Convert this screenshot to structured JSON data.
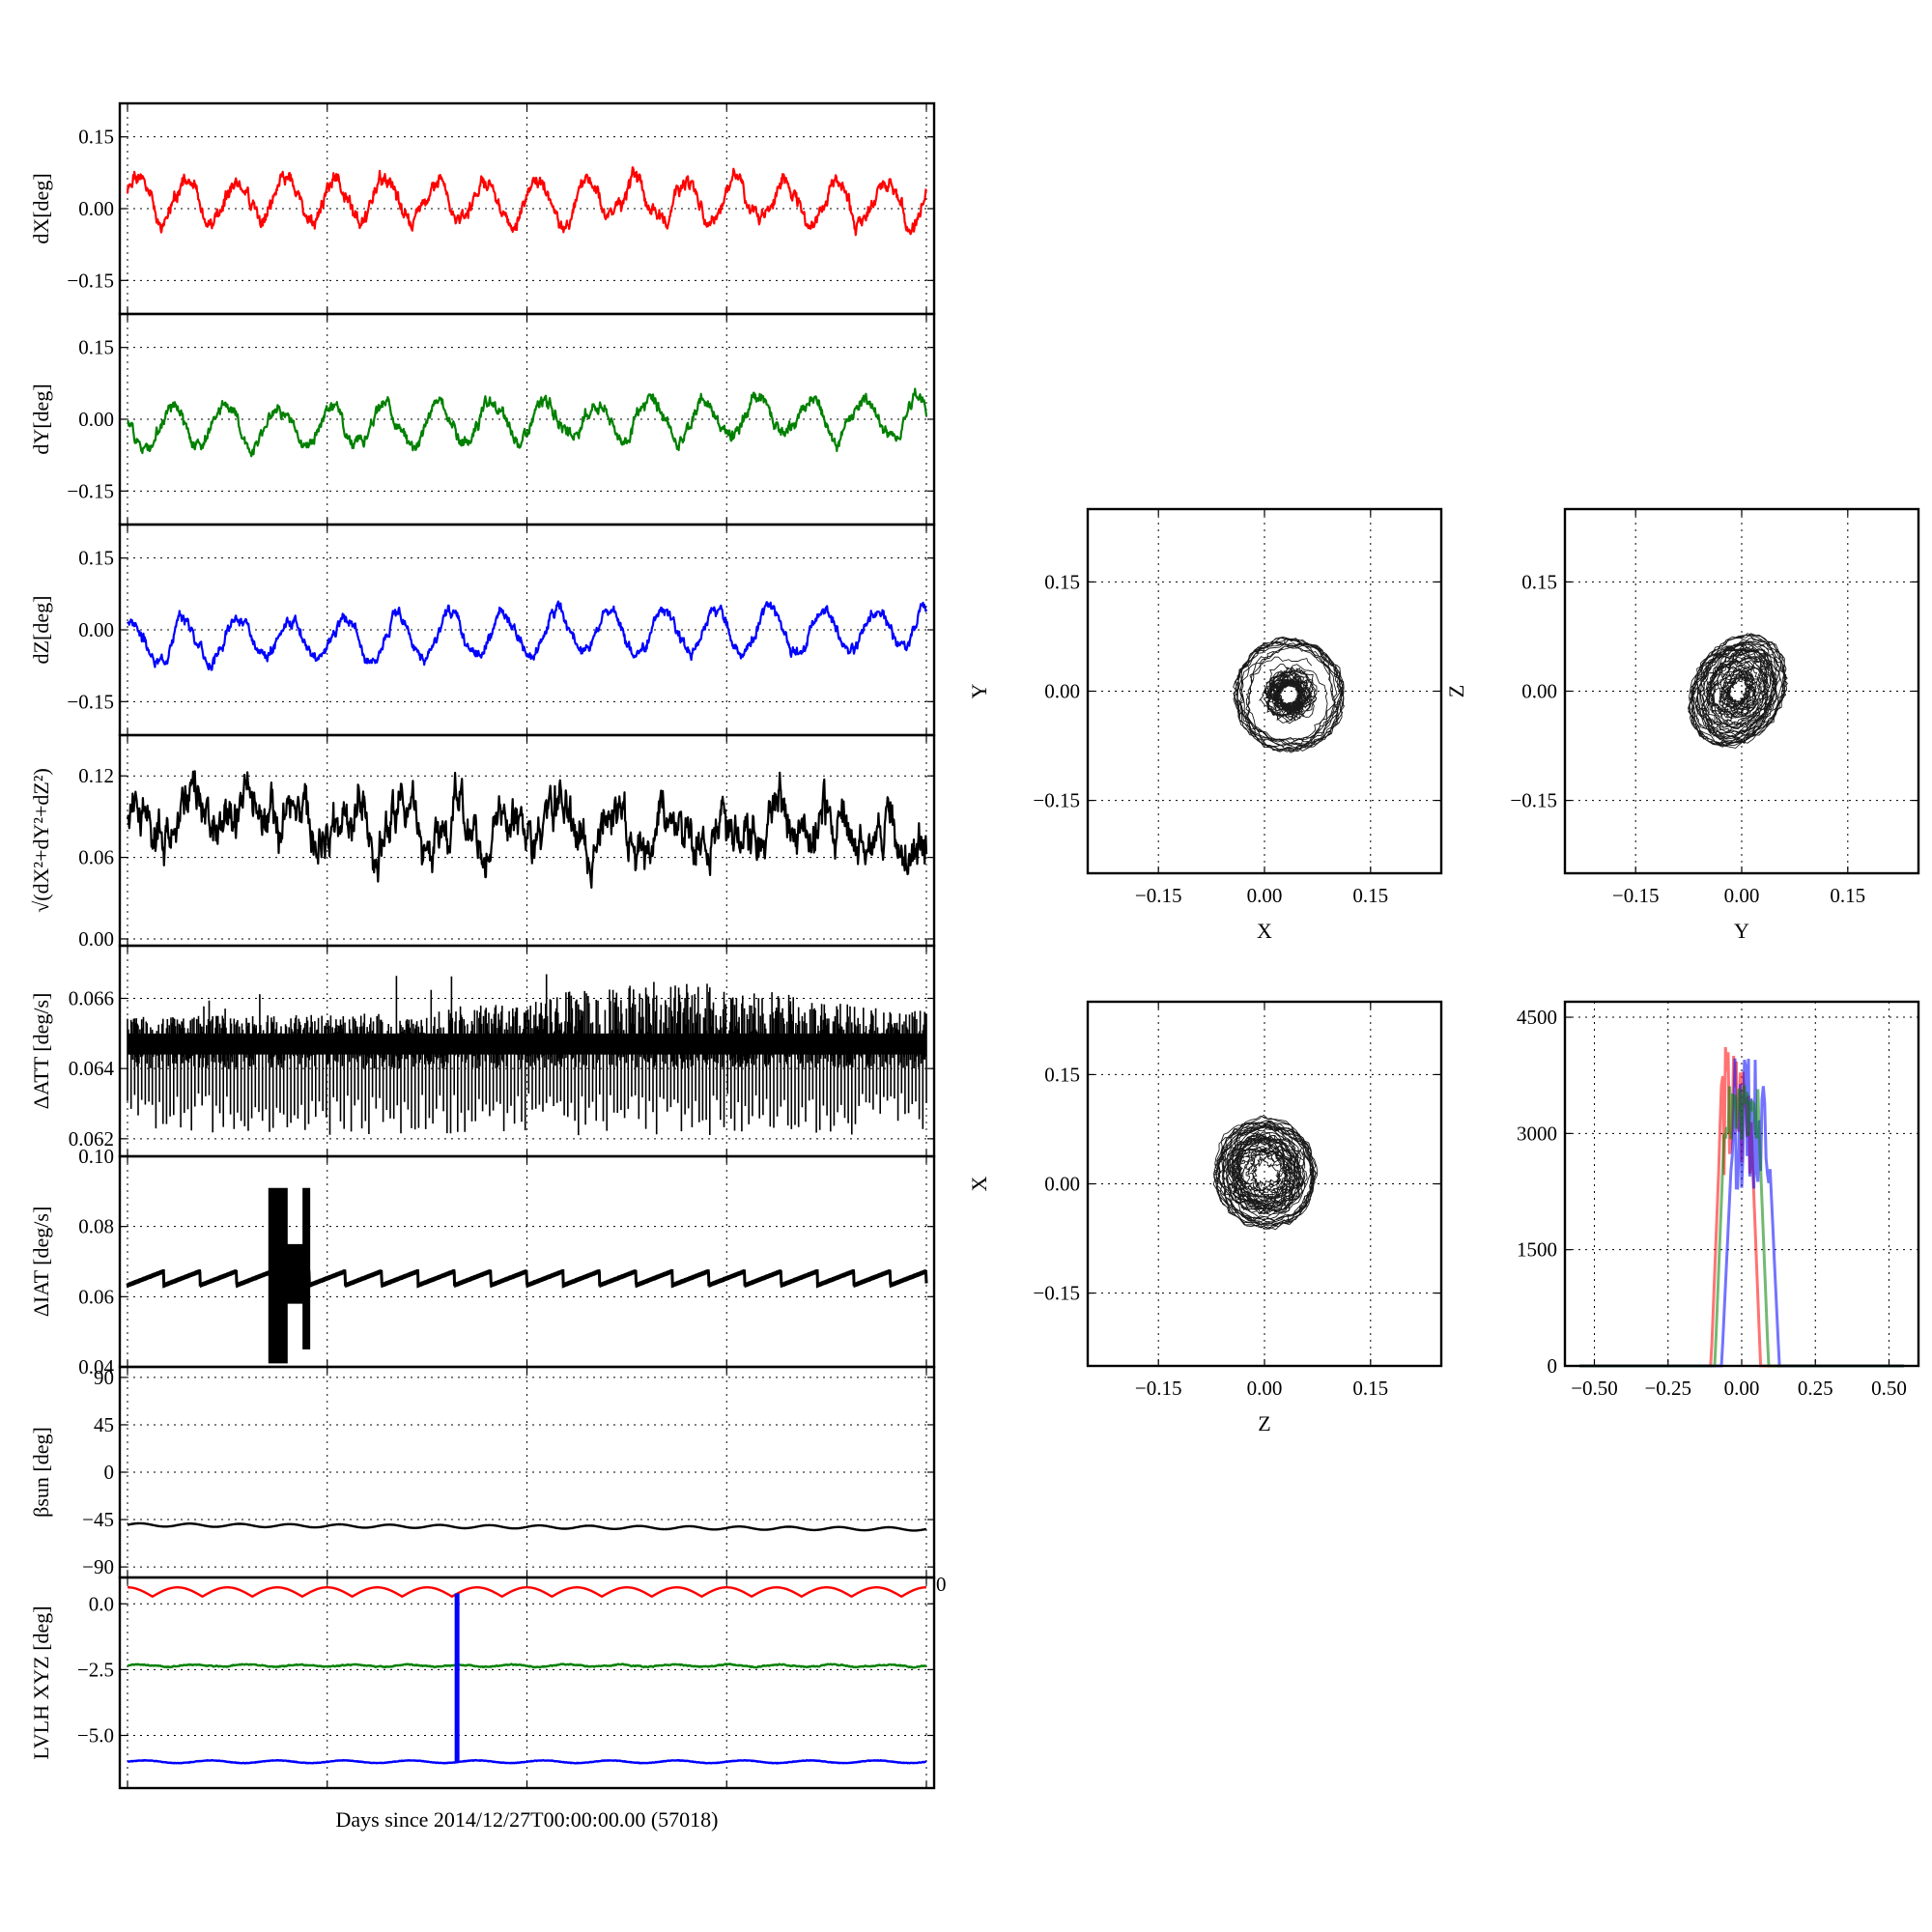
{
  "chart_data": [
    {
      "id": "dx",
      "type": "line",
      "ylabel": "dX[deg]",
      "ylim": [
        -0.22,
        0.22
      ],
      "yticks": [
        -0.15,
        0.0,
        0.15
      ],
      "ytick_labels": [
        "−0.15",
        "0.00",
        "0.15"
      ],
      "xlim": [
        0,
        4
      ],
      "xticks": [
        0,
        1,
        2,
        3,
        4
      ],
      "series": [
        {
          "color": "#ff0000",
          "kind": "osc",
          "mean": 0.015,
          "amp": 0.045,
          "cycles": 16,
          "noise": 0.012,
          "phase": 0.4,
          "seed": 1
        }
      ]
    },
    {
      "id": "dy",
      "type": "line",
      "ylabel": "dY[deg]",
      "ylim": [
        -0.22,
        0.22
      ],
      "yticks": [
        -0.15,
        0.0,
        0.15
      ],
      "ytick_labels": [
        "−0.15",
        "0.00",
        "0.15"
      ],
      "xlim": [
        0,
        4
      ],
      "xticks": [
        0,
        1,
        2,
        3,
        4
      ],
      "series": [
        {
          "color": "#008000",
          "kind": "osc",
          "mean": -0.005,
          "amp": 0.04,
          "cycles": 15,
          "noise": 0.01,
          "phase": 2.6,
          "trend": 0.025,
          "seed": 2
        }
      ]
    },
    {
      "id": "dz",
      "type": "line",
      "ylabel": "dZ[deg]",
      "ylim": [
        -0.22,
        0.22
      ],
      "yticks": [
        -0.15,
        0.0,
        0.15
      ],
      "ytick_labels": [
        "−0.15",
        "0.00",
        "0.15"
      ],
      "xlim": [
        0,
        4
      ],
      "xticks": [
        0,
        1,
        2,
        3,
        4
      ],
      "series": [
        {
          "color": "#0000ff",
          "kind": "osc",
          "mean": -0.01,
          "amp": 0.045,
          "cycles": 15,
          "noise": 0.009,
          "phase": 1.2,
          "trend": 0.03,
          "seed": 3
        }
      ]
    },
    {
      "id": "mag",
      "type": "line",
      "ylabel": "√(dX²+dY²+dZ²)",
      "ylim": [
        -0.005,
        0.15
      ],
      "yticks": [
        0.0,
        0.06,
        0.12
      ],
      "ytick_labels": [
        "0.00",
        "0.06",
        "0.12"
      ],
      "xlim": [
        0,
        4
      ],
      "xticks": [
        0,
        1,
        2,
        3,
        4
      ],
      "series": [
        {
          "color": "#000000",
          "kind": "osc",
          "mean": 0.083,
          "amp": 0.012,
          "cycles": 15,
          "noise": 0.012,
          "phase": 0.3,
          "trend": -0.015,
          "seed": 4
        }
      ]
    },
    {
      "id": "datt",
      "type": "line",
      "ylabel": "ΔATT [deg/s]",
      "ylim": [
        0.0615,
        0.0675
      ],
      "yticks": [
        0.062,
        0.064,
        0.066
      ],
      "ytick_labels": [
        "0.062",
        "0.064",
        "0.066"
      ],
      "xlim": [
        0,
        4
      ],
      "xticks": [
        0,
        1,
        2,
        3,
        4
      ],
      "series": [
        {
          "color": "#000000",
          "kind": "spiky",
          "base": 0.0648,
          "low": 0.0621,
          "high": 0.0658,
          "seed": 5
        }
      ]
    },
    {
      "id": "diat",
      "type": "line",
      "ylabel": "ΔIAT [deg/s]",
      "ylim": [
        0.04,
        0.1
      ],
      "yticks": [
        0.04,
        0.06,
        0.08,
        0.1
      ],
      "ytick_labels": [
        "0.04",
        "0.06",
        "0.08",
        "0.10"
      ],
      "xlim": [
        0,
        4
      ],
      "xticks": [
        0,
        1,
        2,
        3,
        4
      ],
      "series": [
        {
          "color": "#000000",
          "kind": "sawtooth",
          "low": 0.063,
          "high": 0.067,
          "cycles": 22,
          "burst": [
            0.71,
            0.91
          ],
          "burst_low": 0.041,
          "burst_high": 0.091,
          "seed": 6
        }
      ]
    },
    {
      "id": "beta",
      "type": "line",
      "ylabel": "βsun [deg]",
      "ylim": [
        -100,
        100
      ],
      "yticks": [
        -90,
        -45,
        0,
        45,
        90
      ],
      "ytick_labels": [
        "−90",
        "−45",
        "0",
        "45",
        "90"
      ],
      "xlim": [
        0,
        4
      ],
      "xticks": [
        0,
        1,
        2,
        3,
        4
      ],
      "series": [
        {
          "color": "#000000",
          "kind": "osc",
          "mean": -52,
          "amp": 1.5,
          "cycles": 16,
          "noise": 0,
          "phase": 0,
          "trend": -4,
          "seed": 7
        }
      ]
    },
    {
      "id": "lvlh",
      "type": "line",
      "ylabel": "LVLH XYZ [deg]",
      "ylim": [
        -7.0,
        1.0
      ],
      "yticks": [
        -5.0,
        -2.5,
        0.0
      ],
      "ytick_labels": [
        "−5.0",
        "−2.5",
        "0.0"
      ],
      "xlim": [
        0,
        4
      ],
      "xticks": [
        0,
        1,
        2,
        3,
        4
      ],
      "xlabel": "Days since 2014/12/27T00:00:00.00 (57018)",
      "corner_label": "0",
      "series": [
        {
          "color": "#ff0000",
          "kind": "arcs",
          "mean": 0.45,
          "amp": 0.35,
          "cycles": 16,
          "seed": 8
        },
        {
          "color": "#008000",
          "kind": "osc",
          "mean": -2.35,
          "amp": 0.04,
          "cycles": 15,
          "noise": 0.015,
          "phase": 0,
          "seed": 9
        },
        {
          "color": "#0000ff",
          "kind": "spike",
          "mean": -6.0,
          "amp": 0.05,
          "cycles": 12,
          "spike_at": 1.65,
          "spike_to": 0.4,
          "seed": 10
        }
      ]
    },
    {
      "id": "sc_xy",
      "type": "scatter",
      "xlabel": "X",
      "ylabel": "Y",
      "xlim": [
        -0.25,
        0.25
      ],
      "ylim": [
        -0.25,
        0.25
      ],
      "ticks": [
        -0.15,
        0.0,
        0.15
      ],
      "tick_labels": [
        "−0.15",
        "0.00",
        "0.15"
      ],
      "series": [
        {
          "color": "#000000",
          "center": [
            0.035,
            -0.005
          ],
          "radius": [
            0.055,
            0.055
          ],
          "tilt": 0.75,
          "seed": 11
        }
      ]
    },
    {
      "id": "sc_yz",
      "type": "scatter",
      "xlabel": "Y",
      "ylabel": "Z",
      "xlim": [
        -0.25,
        0.25
      ],
      "ylim": [
        -0.25,
        0.25
      ],
      "ticks": [
        -0.15,
        0.0,
        0.15
      ],
      "tick_labels": [
        "−0.15",
        "0.00",
        "0.15"
      ],
      "series": [
        {
          "color": "#000000",
          "center": [
            -0.005,
            0.0
          ],
          "radius": [
            0.045,
            0.058
          ],
          "tilt": -0.55,
          "seed": 12
        }
      ]
    },
    {
      "id": "sc_zx",
      "type": "scatter",
      "xlabel": "Z",
      "ylabel": "X",
      "xlim": [
        -0.25,
        0.25
      ],
      "ylim": [
        -0.25,
        0.25
      ],
      "ticks": [
        -0.15,
        0.0,
        0.15
      ],
      "tick_labels": [
        "−0.15",
        "0.00",
        "0.15"
      ],
      "series": [
        {
          "color": "#000000",
          "center": [
            0.0,
            0.015
          ],
          "radius": [
            0.052,
            0.055
          ],
          "tilt": 0.35,
          "seed": 13
        }
      ]
    },
    {
      "id": "hist",
      "type": "histogram",
      "xlim": [
        -0.6,
        0.6
      ],
      "ylim": [
        0,
        4700
      ],
      "xticks": [
        -0.5,
        -0.25,
        0.0,
        0.25,
        0.5
      ],
      "xtick_labels": [
        "−0.50",
        "−0.25",
        "0.00",
        "0.25",
        "0.50"
      ],
      "yticks": [
        0,
        1500,
        3000,
        4500
      ],
      "ytick_labels": [
        "0",
        "1500",
        "3000",
        "4500"
      ],
      "series": [
        {
          "color": "#ff0000",
          "center": -0.02,
          "width": 0.06,
          "peak": 4600,
          "plateau": 2900,
          "seed": 14
        },
        {
          "color": "#0000ff",
          "center": 0.03,
          "width": 0.07,
          "peak": 4400,
          "plateau": 2800,
          "seed": 15
        },
        {
          "color": "#008000",
          "center": 0.0,
          "width": 0.065,
          "peak": 3800,
          "plateau": 3100,
          "seed": 16
        }
      ]
    }
  ]
}
